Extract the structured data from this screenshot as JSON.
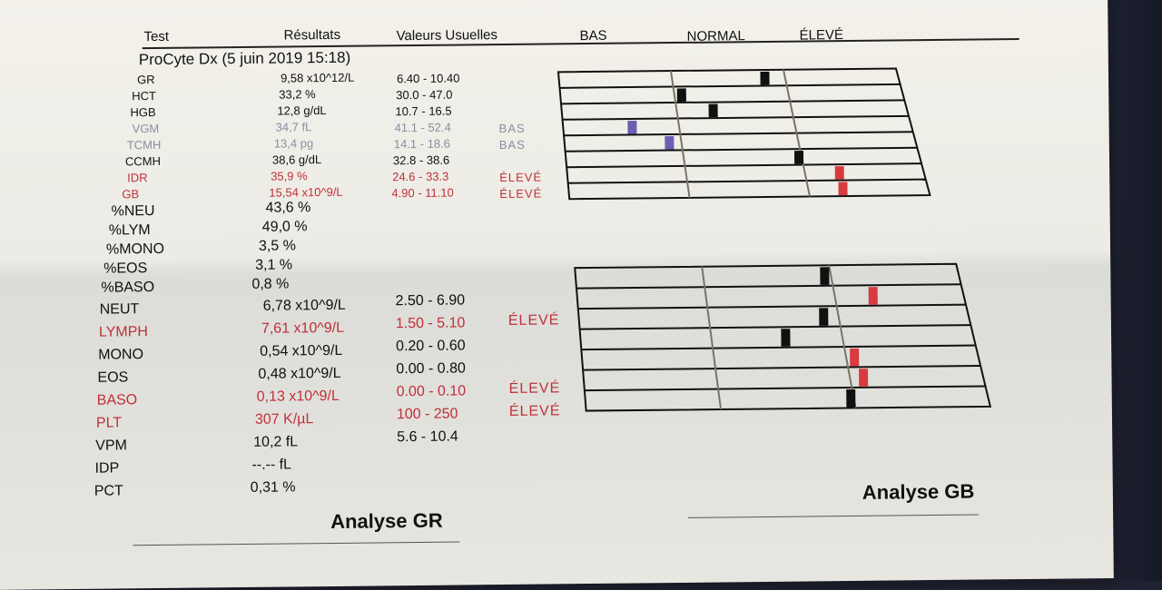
{
  "headers": {
    "test": "Test",
    "results": "Résultats",
    "ref": "Valeurs Usuelles",
    "low": "BAS",
    "normal": "NORMAL",
    "high": "ÉLEVÉ"
  },
  "subtitle": "ProCyte Dx (5 juin 2019 15:18)",
  "colors": {
    "normal_marker": "#111111",
    "low_marker": "#6a5fb0",
    "high_marker": "#d83a40",
    "flag_red": "#c0303a",
    "flag_low": "#8d8da3"
  },
  "gr_rows": [
    {
      "test": "GR",
      "result": "9,58 x10^12/L",
      "ref": "6.40 - 10.40",
      "flag": "",
      "status": "normal",
      "level": 0.82
    },
    {
      "test": "HCT",
      "result": "33,2 %",
      "ref": "30.0 - 47.0",
      "flag": "",
      "status": "normal",
      "level": 0.05
    },
    {
      "test": "HGB",
      "result": "12,8 g/dL",
      "ref": "10.7 - 16.5",
      "flag": "",
      "status": "normal",
      "level": 0.3
    },
    {
      "test": "VGM",
      "result": "34,7 fL",
      "ref": "41.1 - 52.4",
      "flag": "BAS",
      "status": "low",
      "level": 0.55
    },
    {
      "test": "TCMH",
      "result": "13,4 pg",
      "ref": "14.1 - 18.6",
      "flag": "BAS",
      "status": "low",
      "level": 0.85
    },
    {
      "test": "CCMH",
      "result": "38,6 g/dL",
      "ref": "32.8 - 38.6",
      "flag": "",
      "status": "normal",
      "level": 0.97
    },
    {
      "test": "IDR",
      "result": "35,9 %",
      "ref": "24.6 - 33.3",
      "flag": "ÉLEVÉ",
      "status": "high",
      "level": 0.3
    },
    {
      "test": "GB",
      "result": "15,54 x10^9/L",
      "ref": "4.90 - 11.10",
      "flag": "ÉLEVÉ",
      "status": "high",
      "level": 0.3
    }
  ],
  "diff_rows": [
    {
      "test": "%NEU",
      "result": "43,6 %"
    },
    {
      "test": "%LYM",
      "result": "49,0 %"
    },
    {
      "test": "%MONO",
      "result": "3,5 %"
    },
    {
      "test": "%EOS",
      "result": "3,1 %"
    },
    {
      "test": "%BASO",
      "result": "0,8 %"
    }
  ],
  "gb_rows": [
    {
      "test": "NEUT",
      "result": "6,78 x10^9/L",
      "ref": "2.50 - 6.90",
      "flag": "",
      "status": "normal",
      "level": 0.95
    },
    {
      "test": "LYMPH",
      "result": "7,61 x10^9/L",
      "ref": "1.50 - 5.10",
      "flag": "ÉLEVÉ",
      "status": "high",
      "level": 0.3
    },
    {
      "test": "MONO",
      "result": "0,54 x10^9/L",
      "ref": "0.20 - 0.60",
      "flag": "",
      "status": "normal",
      "level": 0.88
    },
    {
      "test": "EOS",
      "result": "0,48 x10^9/L",
      "ref": "0.00 - 0.80",
      "flag": "",
      "status": "normal",
      "level": 0.55
    },
    {
      "test": "BASO",
      "result": "0,13 x10^9/L",
      "ref": "0.00 - 0.10",
      "flag": "ÉLEVÉ",
      "status": "high",
      "level": 0.06
    },
    {
      "test": "PLT",
      "result": "307 K/µL",
      "ref": "100 - 250",
      "flag": "ÉLEVÉ",
      "status": "high",
      "level": 0.1
    },
    {
      "test": "VPM",
      "result": "10,2 fL",
      "ref": "5.6 - 10.4",
      "flag": "",
      "status": "normal",
      "level": 0.97
    },
    {
      "test": "IDP",
      "result": "--.-- fL",
      "ref": "",
      "flag": ""
    },
    {
      "test": "PCT",
      "result": "0,31 %",
      "ref": "",
      "flag": ""
    }
  ],
  "footer": {
    "gr_title": "Analyse GR",
    "gb_title": "Analyse GB"
  }
}
